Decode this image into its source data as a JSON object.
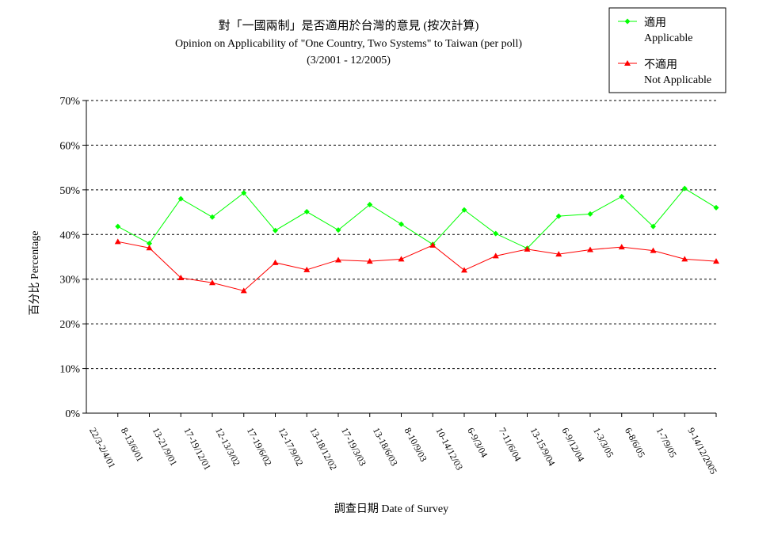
{
  "chart_data": {
    "type": "line",
    "title": "對「一國兩制」是否適用於台灣的意見 (按次計算)",
    "subtitle": "Opinion on Applicability of \"One Country, Two Systems\" to Taiwan (per poll)",
    "period": "(3/2001 - 12/2005)",
    "xlabel": "調查日期 Date of Survey",
    "ylabel": "百分比 Percentage",
    "ylim": [
      0,
      70
    ],
    "yticks": [
      "0%",
      "10%",
      "20%",
      "30%",
      "40%",
      "50%",
      "60%",
      "70%"
    ],
    "grid": true,
    "legend_position": "top-right",
    "categories": [
      "22/3-2/4/01",
      "8-13/6/01",
      "13-21/9/01",
      "17-19/12/01",
      "12-13/3/02",
      "17-19/6/02",
      "12-17/9/02",
      "13-18/12/02",
      "17-19/3/03",
      "13-18/6/03",
      "8-10/9/03",
      "10-14/12/03",
      "6-9/3/04",
      "7-11/6/04",
      "13-15/9/04",
      "6-9/12/04",
      "1-3/3/05",
      "6-8/6/05",
      "1-7/9/05",
      "9-14/12/2005"
    ],
    "series": [
      {
        "name_zh": "適用",
        "name_en": "Applicable",
        "color": "#00ff00",
        "marker": "diamond",
        "values": [
          41.8,
          38.0,
          48.0,
          43.9,
          49.3,
          40.9,
          45.1,
          41.0,
          46.7,
          42.3,
          37.8,
          45.5,
          40.2,
          36.9,
          44.1,
          44.6,
          48.5,
          41.8,
          50.3,
          46.0
        ]
      },
      {
        "name_zh": "不適用",
        "name_en": "Not Applicable",
        "color": "#ff0000",
        "marker": "triangle",
        "values": [
          38.4,
          37.0,
          30.3,
          29.2,
          27.4,
          33.7,
          32.1,
          34.3,
          34.0,
          34.5,
          37.6,
          32.0,
          35.2,
          36.7,
          35.6,
          36.6,
          37.2,
          36.4,
          34.5,
          34.0
        ]
      }
    ]
  }
}
